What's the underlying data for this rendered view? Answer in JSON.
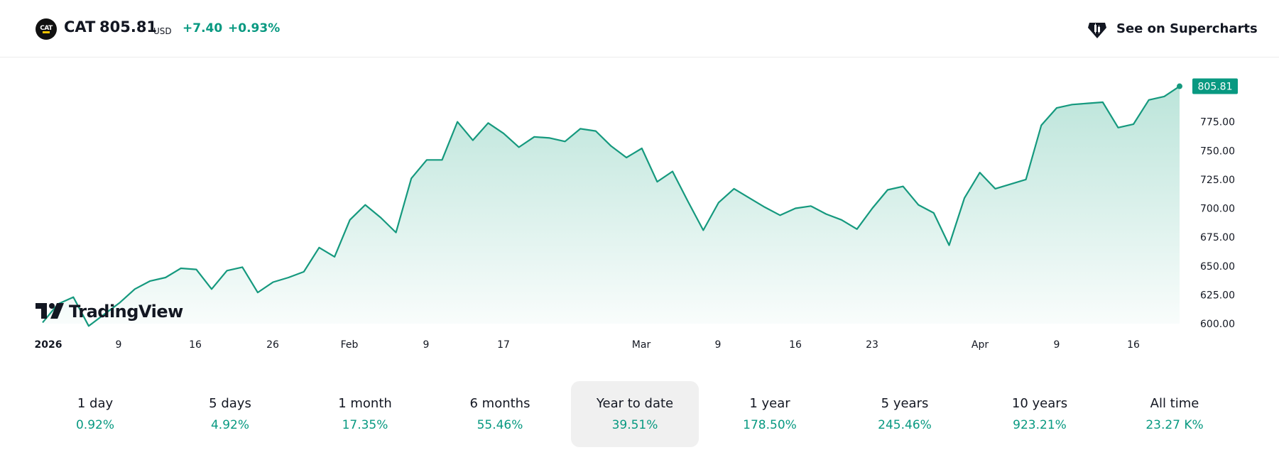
{
  "header": {
    "logo_text": "CAT",
    "symbol": "CAT",
    "price": "805.81",
    "currency": "USD",
    "change": "+7.40",
    "change_percent": "+0.93%",
    "supercharts_label": "See on Supercharts",
    "supercharts_icon": "candlestick-icon"
  },
  "colors": {
    "accent": "#089981",
    "line": "#15997e",
    "fill": "#b8e3d8",
    "text": "#131722",
    "selected_bg": "#f0f0f0"
  },
  "watermark": "TradingView",
  "chart_data": {
    "type": "area",
    "title": "",
    "xlabel": "",
    "ylabel": "",
    "ylim": [
      600,
      816
    ],
    "y_ticks": [
      "600.00",
      "625.00",
      "650.00",
      "675.00",
      "700.00",
      "725.00",
      "750.00",
      "775.00"
    ],
    "last_value_label": "805.81",
    "x_ticks": [
      "2026",
      "9",
      "16",
      "26",
      "Feb",
      "9",
      "17",
      "Mar",
      "9",
      "16",
      "23",
      "Apr",
      "9",
      "16"
    ],
    "grid": false,
    "series": [
      {
        "values": [
          601,
          617,
          623,
          598,
          608,
          618,
          630,
          637,
          640,
          648,
          647,
          630,
          646,
          649,
          627,
          636,
          640,
          645,
          666,
          658,
          690,
          703,
          692,
          679,
          726,
          742,
          742,
          775,
          759,
          774,
          765,
          753,
          762,
          761,
          758,
          769,
          767,
          754,
          744,
          752,
          723,
          732,
          706,
          681,
          705,
          717,
          709,
          701,
          694,
          700,
          702,
          695,
          690,
          682,
          700,
          716,
          719,
          703,
          696,
          668,
          709,
          731,
          717,
          721,
          725,
          772,
          787,
          790,
          791,
          792,
          770,
          773,
          794,
          797,
          805.81
        ]
      }
    ]
  },
  "periods": [
    {
      "label": "1 day",
      "value": "0.92%"
    },
    {
      "label": "5 days",
      "value": "4.92%"
    },
    {
      "label": "1 month",
      "value": "17.35%"
    },
    {
      "label": "6 months",
      "value": "55.46%"
    },
    {
      "label": "Year to date",
      "value": "39.51%",
      "selected": true
    },
    {
      "label": "1 year",
      "value": "178.50%"
    },
    {
      "label": "5 years",
      "value": "245.46%"
    },
    {
      "label": "10 years",
      "value": "923.21%"
    },
    {
      "label": "All time",
      "value": "23.27 K%"
    }
  ]
}
